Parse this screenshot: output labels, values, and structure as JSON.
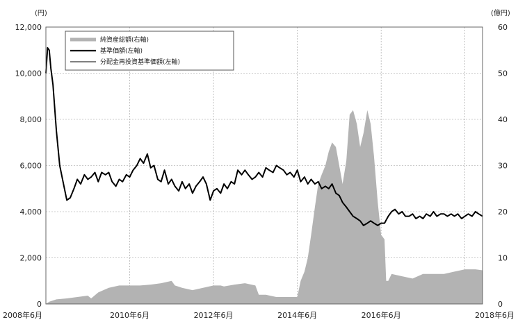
{
  "chart_data": {
    "type": "line",
    "title": "",
    "left_axis": {
      "unit_label": "(円)",
      "ylim": [
        0,
        12000
      ],
      "ticks": [
        0,
        2000,
        4000,
        6000,
        8000,
        10000,
        12000
      ],
      "tick_labels": [
        "0",
        "2,000",
        "4,000",
        "6,000",
        "8,000",
        "10,000",
        "12,000"
      ]
    },
    "right_axis": {
      "unit_label": "(億円)",
      "ylim": [
        0,
        60
      ],
      "ticks": [
        0,
        10,
        20,
        30,
        40,
        50,
        60
      ],
      "tick_labels": [
        "0",
        "10",
        "20",
        "30",
        "40",
        "50",
        "60"
      ]
    },
    "x_axis": {
      "xlim": [
        2008.5,
        2018.92
      ],
      "ticks": [
        2008.5,
        2010.5,
        2012.5,
        2014.5,
        2016.5,
        2018.5
      ],
      "tick_labels": [
        "2008年6月",
        "2010年6月",
        "2012年6月",
        "2014年6月",
        "2016年6月",
        "2018年6月"
      ]
    },
    "legend": {
      "placement": "top-left",
      "items": [
        "純資産総額(右軸)",
        "基準価額(左軸)",
        "分配金再投資基準価額(左軸)"
      ]
    },
    "grid": true,
    "series": [
      {
        "name": "純資産総額(右軸)",
        "axis": "right",
        "kind": "area",
        "color": "#b3b3b3",
        "x": [
          2008.5,
          2008.58,
          2008.75,
          2009.0,
          2009.25,
          2009.5,
          2009.58,
          2009.75,
          2010.0,
          2010.25,
          2010.5,
          2010.75,
          2011.0,
          2011.25,
          2011.5,
          2011.58,
          2011.75,
          2012.0,
          2012.25,
          2012.5,
          2012.67,
          2012.75,
          2013.0,
          2013.25,
          2013.5,
          2013.58,
          2013.75,
          2014.0,
          2014.25,
          2014.5,
          2014.58,
          2014.67,
          2014.75,
          2014.83,
          2014.92,
          2015.0,
          2015.08,
          2015.17,
          2015.25,
          2015.33,
          2015.42,
          2015.5,
          2015.58,
          2015.67,
          2015.75,
          2015.83,
          2015.92,
          2016.0,
          2016.08,
          2016.17,
          2016.25,
          2016.33,
          2016.42,
          2016.5,
          2016.58,
          2016.62,
          2016.67,
          2016.75,
          2017.0,
          2017.25,
          2017.5,
          2017.75,
          2018.0,
          2018.25,
          2018.5,
          2018.75,
          2018.92
        ],
        "values": [
          0,
          0.5,
          1,
          1.2,
          1.5,
          1.8,
          1.2,
          2.5,
          3.5,
          4,
          4,
          4,
          4.2,
          4.5,
          5,
          4,
          3.5,
          3,
          3.5,
          4,
          4,
          3.8,
          4.2,
          4.5,
          4,
          2,
          2,
          1.5,
          1.5,
          1.5,
          5,
          7,
          10,
          15,
          21,
          26,
          28,
          30,
          33,
          35,
          34,
          30,
          26,
          31,
          41,
          42,
          39,
          34,
          37,
          42,
          39,
          32,
          22,
          15,
          14,
          5,
          5,
          6.5,
          6,
          5.5,
          6.5,
          6.5,
          6.5,
          7,
          7.5,
          7.5,
          7.3
        ]
      },
      {
        "name": "基準価額(左軸)",
        "axis": "left",
        "kind": "line",
        "color": "#000000",
        "stroke_width": 2,
        "x": [
          2008.5,
          2008.54,
          2008.58,
          2008.62,
          2008.67,
          2008.75,
          2008.83,
          2008.92,
          2009.0,
          2009.08,
          2009.17,
          2009.25,
          2009.33,
          2009.42,
          2009.5,
          2009.58,
          2009.67,
          2009.75,
          2009.83,
          2009.92,
          2010.0,
          2010.08,
          2010.17,
          2010.25,
          2010.33,
          2010.42,
          2010.5,
          2010.58,
          2010.67,
          2010.75,
          2010.83,
          2010.92,
          2011.0,
          2011.08,
          2011.17,
          2011.25,
          2011.33,
          2011.42,
          2011.5,
          2011.58,
          2011.67,
          2011.75,
          2011.83,
          2011.92,
          2012.0,
          2012.08,
          2012.17,
          2012.25,
          2012.33,
          2012.42,
          2012.5,
          2012.58,
          2012.67,
          2012.75,
          2012.83,
          2012.92,
          2013.0,
          2013.08,
          2013.17,
          2013.25,
          2013.33,
          2013.42,
          2013.5,
          2013.58,
          2013.67,
          2013.75,
          2013.83,
          2013.92,
          2014.0,
          2014.08,
          2014.17,
          2014.25,
          2014.33,
          2014.42,
          2014.5,
          2014.58,
          2014.67,
          2014.75,
          2014.83,
          2014.92,
          2015.0,
          2015.08,
          2015.17,
          2015.25,
          2015.33,
          2015.42,
          2015.5,
          2015.58,
          2015.67,
          2015.75,
          2015.83,
          2015.92,
          2016.0,
          2016.08,
          2016.17,
          2016.25,
          2016.33,
          2016.42,
          2016.5,
          2016.58,
          2016.67,
          2016.75,
          2016.83,
          2016.92,
          2017.0,
          2017.08,
          2017.17,
          2017.25,
          2017.33,
          2017.42,
          2017.5,
          2017.58,
          2017.67,
          2017.75,
          2017.83,
          2017.92,
          2018.0,
          2018.08,
          2018.17,
          2018.25,
          2018.33,
          2018.42,
          2018.5,
          2018.58,
          2018.67,
          2018.75,
          2018.83,
          2018.92
        ],
        "values": [
          10000,
          11100,
          11000,
          10200,
          9500,
          7500,
          6000,
          5200,
          4500,
          4600,
          5000,
          5400,
          5200,
          5600,
          5400,
          5500,
          5700,
          5300,
          5700,
          5600,
          5700,
          5300,
          5100,
          5400,
          5300,
          5600,
          5500,
          5800,
          6000,
          6300,
          6100,
          6500,
          5900,
          6000,
          5400,
          5300,
          5800,
          5200,
          5400,
          5100,
          4900,
          5300,
          5000,
          5200,
          4800,
          5100,
          5300,
          5500,
          5200,
          4500,
          4900,
          5000,
          4800,
          5200,
          5000,
          5300,
          5200,
          5800,
          5600,
          5800,
          5600,
          5400,
          5500,
          5700,
          5500,
          5900,
          5800,
          5700,
          6000,
          5900,
          5800,
          5600,
          5700,
          5500,
          5800,
          5300,
          5500,
          5200,
          5400,
          5200,
          5300,
          5000,
          5100,
          5000,
          5200,
          4800,
          4700,
          4400,
          4200,
          4000,
          3800,
          3700,
          3600,
          3400,
          3500,
          3600,
          3500,
          3400,
          3500,
          3500,
          3800,
          4000,
          4100,
          3900,
          4000,
          3800,
          3800,
          3900,
          3700,
          3800,
          3700,
          3900,
          3800,
          4000,
          3800,
          3900,
          3900,
          3800,
          3900,
          3800,
          3900,
          3700,
          3800,
          3900,
          3800,
          4000,
          3900,
          3800
        ]
      },
      {
        "name": "分配金再投資基準価額(左軸)",
        "axis": "left",
        "kind": "line",
        "color": "#000000",
        "stroke_width": 0.8,
        "x": [
          2008.5,
          2008.54,
          2008.58,
          2008.62,
          2008.67,
          2008.75,
          2008.83,
          2008.92,
          2009.0,
          2009.08,
          2009.17,
          2009.25,
          2009.33,
          2009.42,
          2009.5,
          2009.58,
          2009.67,
          2009.75,
          2009.83,
          2009.92,
          2010.0,
          2010.08,
          2010.17,
          2010.25,
          2010.33,
          2010.42,
          2010.5,
          2010.58,
          2010.67,
          2010.75,
          2010.83,
          2010.92,
          2011.0,
          2011.08,
          2011.17,
          2011.25,
          2011.33,
          2011.42,
          2011.5,
          2011.58,
          2011.67,
          2011.75,
          2011.83,
          2011.92,
          2012.0,
          2012.08,
          2012.17,
          2012.25,
          2012.33,
          2012.42,
          2012.5,
          2012.58,
          2012.67,
          2012.75,
          2012.83,
          2012.92,
          2013.0,
          2013.08,
          2013.17,
          2013.25,
          2013.33,
          2013.42,
          2013.5,
          2013.58,
          2013.67,
          2013.75,
          2013.83,
          2013.92,
          2014.0,
          2014.08,
          2014.17,
          2014.25,
          2014.33,
          2014.42,
          2014.5,
          2014.58,
          2014.67,
          2014.75,
          2014.83,
          2014.92,
          2015.0,
          2015.08,
          2015.17,
          2015.25,
          2015.33,
          2015.42,
          2015.5,
          2015.58,
          2015.67,
          2015.75,
          2015.83,
          2015.92,
          2016.0,
          2016.08,
          2016.17,
          2016.25,
          2016.33,
          2016.42,
          2016.5,
          2016.58,
          2016.67,
          2016.75,
          2016.83,
          2016.92,
          2017.0,
          2017.08,
          2017.17,
          2017.25,
          2017.33,
          2017.42,
          2017.5,
          2017.58,
          2017.67,
          2017.75,
          2017.83,
          2017.92,
          2018.0,
          2018.08,
          2018.17,
          2018.25,
          2018.33,
          2018.42,
          2018.5,
          2018.58,
          2018.67,
          2018.75,
          2018.83,
          2018.92
        ],
        "values": [
          10000,
          11100,
          11000,
          10200,
          9500,
          7500,
          6000,
          5200,
          4500,
          4600,
          5000,
          5400,
          5200,
          5600,
          5400,
          5500,
          5700,
          5300,
          5700,
          5600,
          5700,
          5300,
          5100,
          5400,
          5300,
          5600,
          5500,
          5800,
          6000,
          6300,
          6100,
          6500,
          5900,
          6000,
          5400,
          5300,
          5800,
          5200,
          5400,
          5100,
          4900,
          5300,
          5000,
          5200,
          4800,
          5100,
          5300,
          5500,
          5200,
          4500,
          4900,
          5000,
          4800,
          5200,
          5000,
          5300,
          5200,
          5800,
          5600,
          5800,
          5600,
          5400,
          5500,
          5700,
          5500,
          5900,
          5800,
          5700,
          6000,
          5900,
          5800,
          5600,
          5700,
          5500,
          5800,
          5300,
          5500,
          5200,
          5400,
          5200,
          5300,
          5000,
          5100,
          5000,
          5200,
          4800,
          4700,
          4400,
          4200,
          4000,
          3800,
          3700,
          3600,
          3400,
          3500,
          3600,
          3500,
          3400,
          3500,
          3500,
          3800,
          4000,
          4100,
          3900,
          4000,
          3800,
          3800,
          3900,
          3700,
          3800,
          3700,
          3900,
          3800,
          4000,
          3800,
          3900,
          3900,
          3800,
          3900,
          3800,
          3900,
          3700,
          3800,
          3900,
          3800,
          4000,
          3900,
          3800
        ]
      }
    ]
  }
}
